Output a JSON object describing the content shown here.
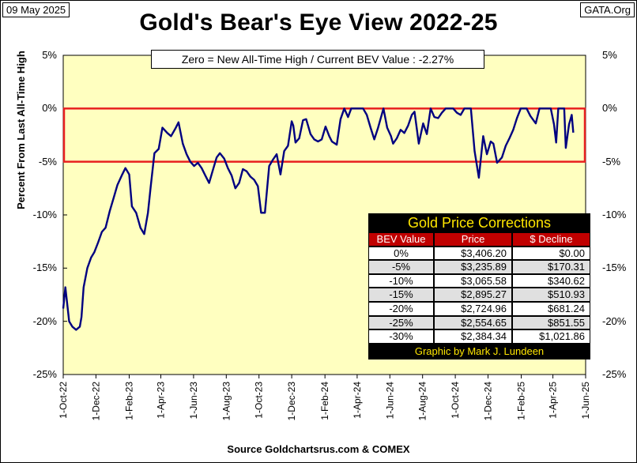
{
  "header": {
    "date": "09 May 2025",
    "site": "GATA.Org",
    "title": "Gold's Bear's Eye View 2022-25",
    "subtitle": "Zero = New All-Time High / Current  BEV Value : -2.27%"
  },
  "axes": {
    "ylabel": "Percent  From  Last  All-Time  High",
    "xlabel": "Source Goldchartsrus.com & COMEX",
    "y_ticks": [
      "5%",
      "0%",
      "-5%",
      "-10%",
      "-15%",
      "-20%",
      "-25%"
    ],
    "x_ticks": [
      "1-Oct-22",
      "1-Dec-22",
      "1-Feb-23",
      "1-Apr-23",
      "1-Jun-23",
      "1-Aug-23",
      "1-Oct-23",
      "1-Dec-23",
      "1-Feb-24",
      "1-Apr-24",
      "1-Jun-24",
      "1-Aug-24",
      "1-Oct-24",
      "1-Dec-24",
      "1-Feb-25",
      "1-Apr-25",
      "1-Jun-25"
    ]
  },
  "corrections_table": {
    "title": "Gold Price Corrections",
    "headers": [
      "BEV Value",
      "Price",
      "$ Decline"
    ],
    "rows": [
      [
        "0%",
        "$3,406.20",
        "$0.00"
      ],
      [
        "-5%",
        "$3,235.89",
        "$170.31"
      ],
      [
        "-10%",
        "$3,065.58",
        "$340.62"
      ],
      [
        "-15%",
        "$2,895.27",
        "$510.93"
      ],
      [
        "-20%",
        "$2,724.96",
        "$681.24"
      ],
      [
        "-25%",
        "$2,554.65",
        "$851.55"
      ],
      [
        "-30%",
        "$2,384.34",
        "$1,021.86"
      ]
    ],
    "footer": "Graphic by Mark J. Lundeen"
  },
  "colors": {
    "plot_background": "#ffffc0",
    "line": "#000080",
    "band": "#e82020",
    "table_header": "#c00000",
    "table_text": "#ffe600"
  },
  "chart_data": {
    "type": "line",
    "title": "Gold's Bear's Eye View 2022-25",
    "ylabel": "Percent  From  Last  All-Time  High",
    "xlabel": "Source Goldchartsrus.com & COMEX",
    "ylim": [
      -25,
      5
    ],
    "xlim": [
      "2022-10-01",
      "2025-06-01"
    ],
    "grid": false,
    "band": {
      "from": -5,
      "to": 0
    },
    "series": [
      {
        "x": [
          "2022-10-01",
          "2022-10-05",
          "2022-10-12",
          "2022-10-18",
          "2022-10-25",
          "2022-11-01",
          "2022-11-04",
          "2022-11-08",
          "2022-11-15",
          "2022-11-22",
          "2022-11-28",
          "2022-12-05",
          "2022-12-12",
          "2022-12-19",
          "2022-12-27",
          "2023-01-03",
          "2023-01-10",
          "2023-01-18",
          "2023-01-25",
          "2023-02-01",
          "2023-02-06",
          "2023-02-14",
          "2023-02-22",
          "2023-03-01",
          "2023-03-08",
          "2023-03-13",
          "2023-03-20",
          "2023-03-28",
          "2023-04-04",
          "2023-04-13",
          "2023-04-20",
          "2023-04-28",
          "2023-05-04",
          "2023-05-12",
          "2023-05-19",
          "2023-05-26",
          "2023-06-02",
          "2023-06-09",
          "2023-06-16",
          "2023-06-23",
          "2023-06-30",
          "2023-07-07",
          "2023-07-14",
          "2023-07-20",
          "2023-07-28",
          "2023-08-04",
          "2023-08-11",
          "2023-08-18",
          "2023-08-25",
          "2023-09-01",
          "2023-09-08",
          "2023-09-15",
          "2023-09-22",
          "2023-09-29",
          "2023-10-05",
          "2023-10-12",
          "2023-10-20",
          "2023-10-27",
          "2023-11-03",
          "2023-11-10",
          "2023-11-17",
          "2023-11-24",
          "2023-12-01",
          "2023-12-04",
          "2023-12-08",
          "2023-12-15",
          "2023-12-22",
          "2023-12-28",
          "2024-01-05",
          "2024-01-12",
          "2024-01-19",
          "2024-01-26",
          "2024-02-02",
          "2024-02-09",
          "2024-02-14",
          "2024-02-23",
          "2024-03-01",
          "2024-03-08",
          "2024-03-15",
          "2024-03-21",
          "2024-03-28",
          "2024-04-05",
          "2024-04-12",
          "2024-04-19",
          "2024-04-26",
          "2024-05-03",
          "2024-05-10",
          "2024-05-20",
          "2024-05-27",
          "2024-06-03",
          "2024-06-07",
          "2024-06-14",
          "2024-06-21",
          "2024-06-28",
          "2024-07-05",
          "2024-07-12",
          "2024-07-17",
          "2024-07-25",
          "2024-08-02",
          "2024-08-09",
          "2024-08-16",
          "2024-08-23",
          "2024-08-30",
          "2024-09-06",
          "2024-09-13",
          "2024-09-20",
          "2024-09-27",
          "2024-10-04",
          "2024-10-11",
          "2024-10-18",
          "2024-10-25",
          "2024-10-30",
          "2024-11-06",
          "2024-11-14",
          "2024-11-22",
          "2024-11-29",
          "2024-12-06",
          "2024-12-11",
          "2024-12-18",
          "2024-12-27",
          "2025-01-03",
          "2025-01-10",
          "2025-01-17",
          "2025-01-24",
          "2025-01-31",
          "2025-02-07",
          "2025-02-11",
          "2025-02-18",
          "2025-02-28",
          "2025-03-07",
          "2025-03-14",
          "2025-03-21",
          "2025-03-28",
          "2025-04-03",
          "2025-04-07",
          "2025-04-11",
          "2025-04-17",
          "2025-04-22",
          "2025-04-25",
          "2025-05-01",
          "2025-05-06",
          "2025-05-09"
        ],
        "values": [
          -18.8,
          -16.8,
          -20.0,
          -20.5,
          -20.8,
          -20.5,
          -19.6,
          -16.8,
          -15.0,
          -14.0,
          -13.5,
          -12.6,
          -11.6,
          -11.2,
          -9.6,
          -8.4,
          -7.2,
          -6.3,
          -5.6,
          -6.2,
          -9.2,
          -9.8,
          -11.2,
          -11.8,
          -9.8,
          -7.4,
          -4.2,
          -3.8,
          -1.8,
          -2.3,
          -2.6,
          -1.9,
          -1.3,
          -3.3,
          -4.3,
          -5.0,
          -5.4,
          -5.1,
          -5.6,
          -6.3,
          -7.0,
          -5.8,
          -4.6,
          -4.2,
          -4.7,
          -5.6,
          -6.3,
          -7.5,
          -7.0,
          -5.7,
          -5.9,
          -6.4,
          -6.7,
          -7.3,
          -9.8,
          -9.8,
          -5.4,
          -4.8,
          -4.3,
          -6.2,
          -4.0,
          -3.5,
          -1.2,
          -1.6,
          -3.2,
          -2.8,
          -1.1,
          -1.0,
          -2.4,
          -2.9,
          -3.1,
          -2.9,
          -1.7,
          -2.6,
          -3.1,
          -3.4,
          -1.0,
          0.0,
          -0.8,
          0.0,
          0.0,
          0.0,
          0.0,
          -0.6,
          -1.8,
          -2.9,
          -1.8,
          0.0,
          -1.8,
          -2.6,
          -3.3,
          -2.8,
          -2.0,
          -2.3,
          -1.6,
          -0.6,
          -0.3,
          -3.3,
          -1.4,
          -2.4,
          0.0,
          -0.8,
          -0.9,
          -0.4,
          0.0,
          0.0,
          0.0,
          -0.4,
          -0.6,
          0.0,
          0.0,
          0.0,
          -4.0,
          -6.5,
          -2.6,
          -4.3,
          -3.1,
          -3.3,
          -5.1,
          -4.6,
          -3.5,
          -2.8,
          -2.0,
          -0.9,
          0.0,
          0.0,
          0.0,
          -0.7,
          -1.4,
          0.0,
          0.0,
          0.0,
          0.0,
          -1.5,
          -3.2,
          0.0,
          0.0,
          0.0,
          -3.7,
          -1.5,
          -0.6,
          -2.27
        ]
      }
    ]
  }
}
